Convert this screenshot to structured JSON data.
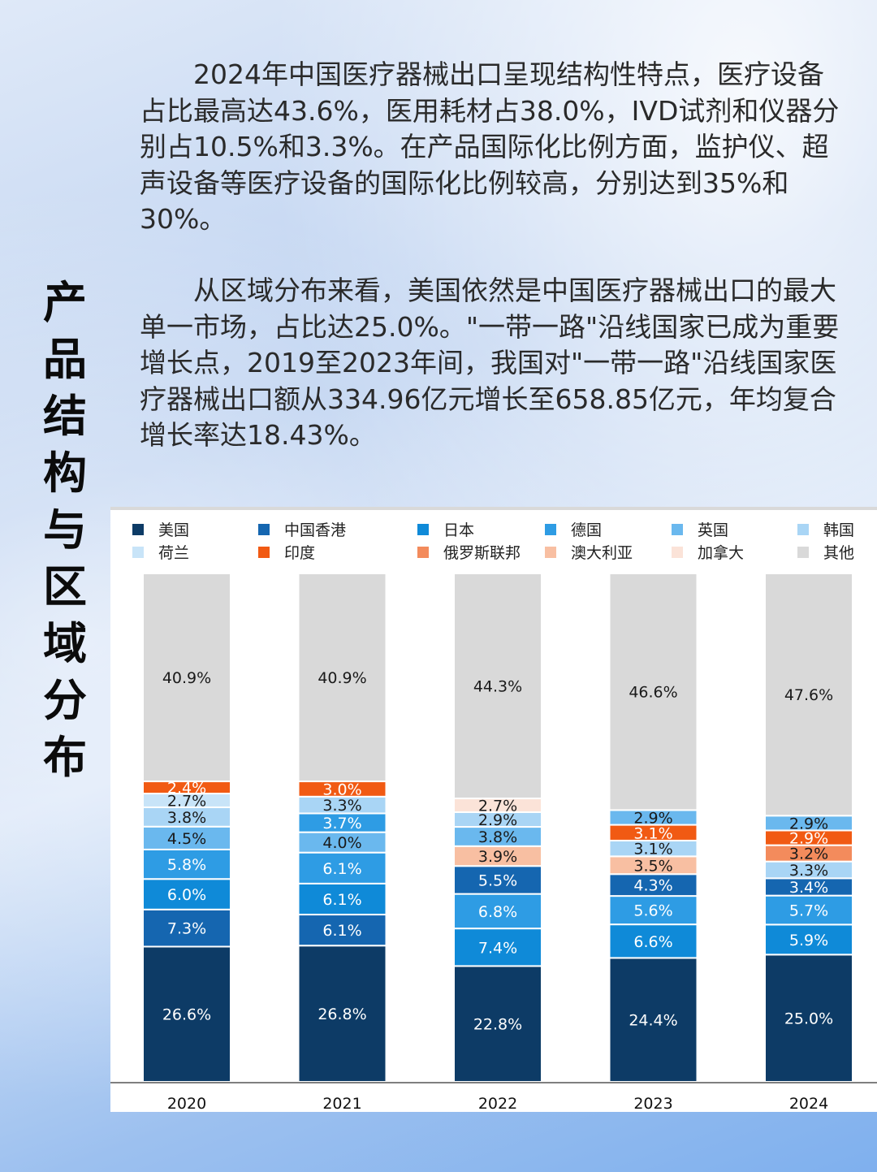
{
  "title": "产品结构与区域分布",
  "paragraphs": [
    "2024年中国医疗器械出口呈现结构性特点，医疗设备占比最高达43.6%，医用耗材占38.0%，IVD试剂和仪器分别占10.5%和3.3%。在产品国际化比例方面，监护仪、超声设备等医疗设备的国际化比例较高，分别达到35%和30%。",
    "从区域分布来看，美国依然是中国医疗器械出口的最大单一市场，占比达25.0%。\"一带一路\"沿线国家已成为重要增长点，2019至2023年间，我国对\"一带一路\"沿线国家医疗器械出口额从334.96亿元增长至658.85亿元，年均复合增长率达18.43%。"
  ],
  "colors": {
    "美国": "#0d3b66",
    "中国香港": "#1566b0",
    "日本": "#0f8ad8",
    "德国": "#2e9ce4",
    "英国": "#6ab8ee",
    "韩国": "#a9d5f5",
    "荷兰": "#c8e4f8",
    "印度": "#f15a13",
    "俄罗斯联邦": "#f38b5c",
    "澳大利亚": "#f8bfa2",
    "加拿大": "#fbe3d8",
    "其他": "#d9d9d9"
  },
  "chart_data": {
    "type": "bar",
    "stacked": true,
    "categories": [
      "2020",
      "2021",
      "2022",
      "2023",
      "2024"
    ],
    "ylim": [
      0,
      100
    ],
    "legend": [
      "美国",
      "中国香港",
      "日本",
      "德国",
      "英国",
      "韩国",
      "荷兰",
      "印度",
      "俄罗斯联邦",
      "澳大利亚",
      "加拿大",
      "其他"
    ],
    "legend_position": "top",
    "stacks": [
      [
        {
          "name": "美国",
          "value": 26.6,
          "label": "26.6%"
        },
        {
          "name": "中国香港",
          "value": 7.3,
          "label": "7.3%"
        },
        {
          "name": "日本",
          "value": 6.0,
          "label": "6.0%"
        },
        {
          "name": "德国",
          "value": 5.8,
          "label": "5.8%"
        },
        {
          "name": "英国",
          "value": 4.5,
          "label": "4.5%"
        },
        {
          "name": "韩国",
          "value": 3.8,
          "label": "3.8%"
        },
        {
          "name": "荷兰",
          "value": 2.7,
          "label": "2.7%"
        },
        {
          "name": "印度",
          "value": 2.4,
          "label": "2.4%"
        },
        {
          "name": "其他",
          "value": 40.9,
          "label": "40.9%"
        }
      ],
      [
        {
          "name": "美国",
          "value": 26.8,
          "label": "26.8%"
        },
        {
          "name": "中国香港",
          "value": 6.1,
          "label": "6.1%"
        },
        {
          "name": "日本",
          "value": 6.1,
          "label": "6.1%"
        },
        {
          "name": "德国",
          "value": 6.1,
          "label": "6.1%"
        },
        {
          "name": "英国",
          "value": 4.0,
          "label": "4.0%"
        },
        {
          "name": "德国",
          "value": 3.7,
          "label": "3.7%"
        },
        {
          "name": "韩国",
          "value": 3.3,
          "label": "3.3%"
        },
        {
          "name": "印度",
          "value": 3.0,
          "label": "3.0%"
        },
        {
          "name": "其他",
          "value": 40.9,
          "label": "40.9%"
        }
      ],
      [
        {
          "name": "美国",
          "value": 22.8,
          "label": "22.8%"
        },
        {
          "name": "日本",
          "value": 7.4,
          "label": "7.4%"
        },
        {
          "name": "德国",
          "value": 6.8,
          "label": "6.8%"
        },
        {
          "name": "中国香港",
          "value": 5.5,
          "label": "5.5%"
        },
        {
          "name": "澳大利亚",
          "value": 3.9,
          "label": "3.9%"
        },
        {
          "name": "英国",
          "value": 3.8,
          "label": "3.8%"
        },
        {
          "name": "韩国",
          "value": 2.9,
          "label": "2.9%"
        },
        {
          "name": "加拿大",
          "value": 2.7,
          "label": "2.7%"
        },
        {
          "name": "其他",
          "value": 44.3,
          "label": "44.3%"
        }
      ],
      [
        {
          "name": "美国",
          "value": 24.4,
          "label": "24.4%"
        },
        {
          "name": "日本",
          "value": 6.6,
          "label": "6.6%"
        },
        {
          "name": "德国",
          "value": 5.6,
          "label": "5.6%"
        },
        {
          "name": "中国香港",
          "value": 4.3,
          "label": "4.3%"
        },
        {
          "name": "澳大利亚",
          "value": 3.5,
          "label": "3.5%"
        },
        {
          "name": "韩国",
          "value": 3.1,
          "label": "3.1%"
        },
        {
          "name": "印度",
          "value": 3.1,
          "label": "3.1%"
        },
        {
          "name": "英国",
          "value": 2.9,
          "label": "2.9%"
        },
        {
          "name": "其他",
          "value": 46.6,
          "label": "46.6%"
        }
      ],
      [
        {
          "name": "美国",
          "value": 25.0,
          "label": "25.0%"
        },
        {
          "name": "日本",
          "value": 5.9,
          "label": "5.9%"
        },
        {
          "name": "德国",
          "value": 5.7,
          "label": "5.7%"
        },
        {
          "name": "中国香港",
          "value": 3.4,
          "label": "3.4%"
        },
        {
          "name": "韩国",
          "value": 3.3,
          "label": "3.3%"
        },
        {
          "name": "俄罗斯联邦",
          "value": 3.2,
          "label": "3.2%"
        },
        {
          "name": "印度",
          "value": 2.9,
          "label": "2.9%"
        },
        {
          "name": "英国",
          "value": 2.9,
          "label": "2.9%"
        },
        {
          "name": "其他",
          "value": 47.6,
          "label": "47.6%"
        }
      ]
    ]
  }
}
